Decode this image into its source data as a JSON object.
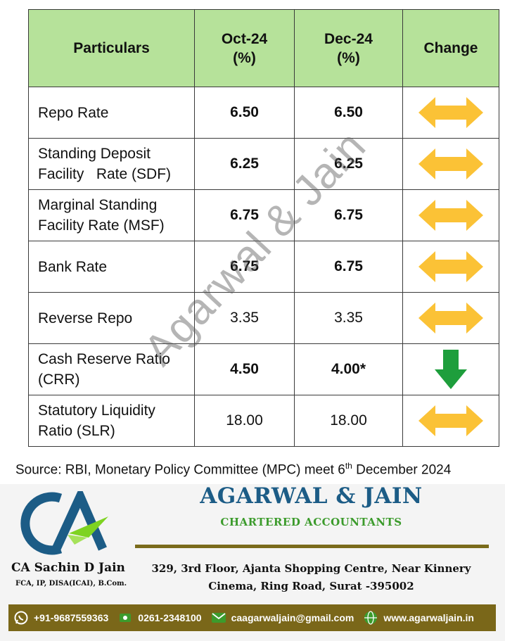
{
  "table": {
    "headers": {
      "particulars": "Particulars",
      "oct": "Oct-24",
      "oct_unit": "(%)",
      "dec": "Dec-24",
      "dec_unit": "(%)",
      "change": "Change"
    },
    "rows": [
      {
        "l1": "Repo Rate",
        "l2": "",
        "oct": "6.50",
        "dec": "6.50",
        "change": "unchanged",
        "bold": true
      },
      {
        "l1": "Standing Deposit",
        "l2": "Facility   Rate (SDF)",
        "oct": "6.25",
        "dec": "6.25",
        "change": "unchanged",
        "bold": true
      },
      {
        "l1": "Marginal Standing",
        "l2": "Facility Rate (MSF)",
        "oct": "6.75",
        "dec": "6.75",
        "change": "unchanged",
        "bold": true
      },
      {
        "l1": "Bank Rate",
        "l2": "",
        "oct": "6.75",
        "dec": "6.75",
        "change": "unchanged",
        "bold": true
      },
      {
        "l1": "Reverse Repo",
        "l2": "",
        "oct": "3.35",
        "dec": "3.35",
        "change": "unchanged",
        "bold": false
      },
      {
        "l1": "Cash Reserve Ratio",
        "l2": "(CRR)",
        "oct": "4.50",
        "dec": "4.00*",
        "change": "decrease",
        "bold": true
      },
      {
        "l1": "Statutory Liquidity",
        "l2": "Ratio (SLR)",
        "oct": "18.00",
        "dec": "18.00",
        "change": "unchanged",
        "bold": false
      }
    ]
  },
  "source": {
    "prefix": "Source: RBI, Monetary Policy Committee (MPC) meet  6",
    "sup": "th",
    "suffix": " December  2024"
  },
  "watermark": "Agarwal & Jain",
  "footer": {
    "firm_name": "AGARWAL & JAIN",
    "firm_subtitle": "CHARTERED ACCOUNTANTS",
    "person_name": "CA Sachin D Jain",
    "person_quals": "FCA, IP, DISA(ICAI), B.Com.",
    "address_line1": "329, 3rd Floor, Ajanta Shopping Centre, Near Kinnery",
    "address_line2": "Cinema, Ring Road, Surat -395002",
    "whatsapp": "+91-9687559363",
    "phone": "0261-2348100",
    "email": "caagarwaljain@gmail.com",
    "website": "www.agarwaljain.in",
    "logo_text": "CA"
  },
  "colors": {
    "header_bg": "#b6e29a",
    "arrow_neutral": "#fbc236",
    "arrow_down": "#1e9e3c",
    "firm_blue": "#1c5c86",
    "firm_green": "#3c9b2c",
    "bar_gold": "#7a6719"
  }
}
